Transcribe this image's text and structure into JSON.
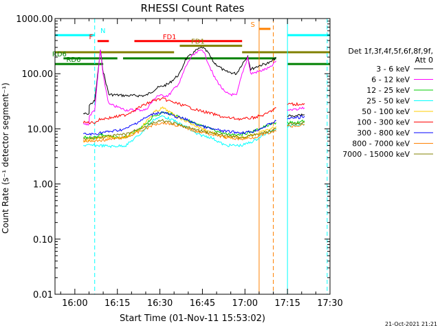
{
  "chart_data": {
    "type": "line",
    "title": "RHESSI Count Rates",
    "xlabel": "Start Time (01-Nov-11 15:53:02)",
    "ylabel": "Count Rate (s⁻¹ detector segment⁻¹)",
    "x_unit": "minutes after 15:53:02",
    "xlim": [
      0,
      97
    ],
    "ylim": [
      0.01,
      1000
    ],
    "y_scale": "log",
    "x_tick_labels": [
      "16:00",
      "16:15",
      "16:30",
      "16:45",
      "17:00",
      "17:15",
      "17:30"
    ],
    "x_ticks": [
      7,
      22,
      37,
      52,
      67,
      82,
      97
    ],
    "y_tick_labels": [
      "0.01",
      "0.10",
      "1.00",
      "10.00",
      "100.00",
      "1000.00"
    ],
    "y_ticks": [
      0.01,
      0.1,
      1,
      10,
      100,
      1000
    ],
    "grid": false,
    "legend_placement": "right",
    "legend_header": [
      "Det 1f,3f,4f,5f,6f,8f,9f,",
      "Att 0"
    ],
    "timestamp": "21-Oct-2021 21:21",
    "series": [
      {
        "name": "3 - 6 keV",
        "color": "#000000",
        "points": [
          [
            10,
            19
          ],
          [
            12,
            18
          ],
          [
            12.1,
            27
          ],
          [
            14,
            32
          ],
          [
            16,
            260
          ],
          [
            17,
            110
          ],
          [
            19,
            42
          ],
          [
            25,
            40
          ],
          [
            32,
            40
          ],
          [
            36,
            55
          ],
          [
            40,
            65
          ],
          [
            44,
            100
          ],
          [
            46,
            180
          ],
          [
            48,
            220
          ],
          [
            50,
            270
          ],
          [
            52,
            300
          ],
          [
            54,
            240
          ],
          [
            56,
            160
          ],
          [
            60,
            110
          ],
          [
            64,
            100
          ],
          [
            66,
            150
          ],
          [
            68,
            210
          ],
          [
            69,
            120
          ],
          [
            72,
            140
          ],
          [
            76,
            160
          ],
          [
            78,
            200
          ]
        ]
      },
      {
        "name": "6 - 12 keV",
        "color": "#ff00ff",
        "points": [
          [
            10,
            12
          ],
          [
            12,
            12
          ],
          [
            12.1,
            17
          ],
          [
            14,
            22
          ],
          [
            16,
            270
          ],
          [
            17,
            90
          ],
          [
            19,
            28
          ],
          [
            25,
            22
          ],
          [
            32,
            22
          ],
          [
            36,
            40
          ],
          [
            40,
            40
          ],
          [
            44,
            70
          ],
          [
            46,
            130
          ],
          [
            48,
            200
          ],
          [
            50,
            240
          ],
          [
            52,
            280
          ],
          [
            54,
            160
          ],
          [
            56,
            90
          ],
          [
            60,
            45
          ],
          [
            64,
            40
          ],
          [
            66,
            100
          ],
          [
            68,
            200
          ],
          [
            69,
            100
          ],
          [
            72,
            110
          ],
          [
            76,
            130
          ],
          [
            78,
            170
          ]
        ]
      },
      {
        "name": "12 - 25 keV",
        "color": "#00cc00",
        "points": [
          [
            10,
            7
          ],
          [
            14,
            7
          ],
          [
            16,
            8
          ],
          [
            20,
            7
          ],
          [
            25,
            7
          ],
          [
            30,
            10
          ],
          [
            35,
            17
          ],
          [
            38,
            20
          ],
          [
            42,
            18
          ],
          [
            46,
            15
          ],
          [
            50,
            12
          ],
          [
            55,
            10
          ],
          [
            60,
            8
          ],
          [
            66,
            8
          ],
          [
            70,
            9
          ],
          [
            74,
            11
          ],
          [
            78,
            13
          ]
        ]
      },
      {
        "name": "25 - 50 keV",
        "color": "#00ffff",
        "points": [
          [
            10,
            5
          ],
          [
            14,
            5
          ],
          [
            16,
            5
          ],
          [
            20,
            4.8
          ],
          [
            25,
            5
          ],
          [
            30,
            8
          ],
          [
            35,
            15
          ],
          [
            38,
            17
          ],
          [
            42,
            14
          ],
          [
            46,
            11
          ],
          [
            50,
            8
          ],
          [
            55,
            7
          ],
          [
            60,
            5
          ],
          [
            66,
            5
          ],
          [
            70,
            6
          ],
          [
            74,
            8
          ],
          [
            78,
            10
          ]
        ]
      },
      {
        "name": "50 - 100 keV",
        "color": "#ffcc00",
        "points": [
          [
            10,
            6
          ],
          [
            16,
            7
          ],
          [
            25,
            7
          ],
          [
            30,
            10
          ],
          [
            35,
            20
          ],
          [
            38,
            24
          ],
          [
            42,
            18
          ],
          [
            50,
            11
          ],
          [
            60,
            7
          ],
          [
            66,
            7
          ],
          [
            74,
            9
          ],
          [
            78,
            11
          ]
        ]
      },
      {
        "name": "100 - 300 keV",
        "color": "#ff0000",
        "points": [
          [
            10,
            13
          ],
          [
            14,
            13
          ],
          [
            16,
            15
          ],
          [
            20,
            16
          ],
          [
            25,
            18
          ],
          [
            30,
            25
          ],
          [
            35,
            33
          ],
          [
            38,
            35
          ],
          [
            42,
            30
          ],
          [
            46,
            26
          ],
          [
            50,
            22
          ],
          [
            55,
            19
          ],
          [
            60,
            16
          ],
          [
            66,
            15
          ],
          [
            70,
            16
          ],
          [
            74,
            18
          ],
          [
            78,
            24
          ]
        ]
      },
      {
        "name": "300 - 800 keV",
        "color": "#0000ff",
        "points": [
          [
            10,
            8
          ],
          [
            14,
            8
          ],
          [
            16,
            8.5
          ],
          [
            20,
            9
          ],
          [
            25,
            10
          ],
          [
            30,
            14
          ],
          [
            35,
            19
          ],
          [
            38,
            20
          ],
          [
            42,
            17
          ],
          [
            46,
            15
          ],
          [
            50,
            12
          ],
          [
            55,
            10
          ],
          [
            60,
            9
          ],
          [
            66,
            8.5
          ],
          [
            70,
            9
          ],
          [
            74,
            11
          ],
          [
            78,
            14
          ]
        ]
      },
      {
        "name": "800 - 7000 keV",
        "color": "#ff8000",
        "points": [
          [
            10,
            6
          ],
          [
            14,
            6
          ],
          [
            16,
            6.2
          ],
          [
            20,
            6.5
          ],
          [
            25,
            7
          ],
          [
            30,
            9
          ],
          [
            35,
            12
          ],
          [
            38,
            13
          ],
          [
            42,
            12
          ],
          [
            46,
            10.5
          ],
          [
            50,
            9
          ],
          [
            55,
            8
          ],
          [
            60,
            7
          ],
          [
            66,
            6.5
          ],
          [
            70,
            7
          ],
          [
            74,
            8
          ],
          [
            78,
            9
          ]
        ]
      },
      {
        "name": "7000 - 15000 keV",
        "color": "#808000",
        "points": [
          [
            10,
            6.5
          ],
          [
            16,
            7
          ],
          [
            25,
            8
          ],
          [
            35,
            13
          ],
          [
            38,
            14
          ],
          [
            42,
            12.5
          ],
          [
            50,
            9.5
          ],
          [
            60,
            7.5
          ],
          [
            66,
            7
          ],
          [
            74,
            8.5
          ],
          [
            78,
            10
          ]
        ]
      }
    ],
    "right_segments": [
      {
        "color": "#000000",
        "points": [
          [
            82,
            17
          ],
          [
            86,
            18
          ],
          [
            88,
            18
          ]
        ]
      },
      {
        "color": "#ff00ff",
        "points": [
          [
            82,
            22
          ],
          [
            86,
            23
          ],
          [
            88,
            24
          ]
        ]
      },
      {
        "color": "#ff0000",
        "points": [
          [
            82,
            28
          ],
          [
            86,
            28
          ],
          [
            88,
            29
          ]
        ]
      },
      {
        "color": "#0000ff",
        "points": [
          [
            82,
            15
          ],
          [
            86,
            16
          ],
          [
            88,
            17
          ]
        ]
      },
      {
        "color": "#00cc00",
        "points": [
          [
            82,
            13
          ],
          [
            86,
            13
          ],
          [
            88,
            14
          ]
        ]
      },
      {
        "color": "#00ffff",
        "points": [
          [
            82,
            11
          ],
          [
            86,
            12
          ],
          [
            88,
            12
          ]
        ]
      },
      {
        "color": "#ff8000",
        "points": [
          [
            82,
            11
          ],
          [
            86,
            11.5
          ],
          [
            88,
            12
          ]
        ]
      },
      {
        "color": "#808000",
        "points": [
          [
            82,
            12
          ],
          [
            86,
            12.5
          ],
          [
            88,
            13
          ]
        ]
      }
    ],
    "flag_bars": [
      {
        "label": "N",
        "color": "#00ffff",
        "x0": 0,
        "x1": 14,
        "y": 500,
        "label_x": 16
      },
      {
        "label": "N",
        "color": "#00ffff",
        "x0": 82,
        "x1": 97,
        "y": 500,
        "label_x": null
      },
      {
        "label": "F",
        "color": "#ff0000",
        "x0": 15,
        "x1": 19,
        "y": 390,
        "label_x": 12
      },
      {
        "label": "FD1",
        "color": "#ff0000",
        "x0": 28,
        "x1": 66,
        "y": 390,
        "label_x": 38
      },
      {
        "label": "S",
        "color": "#ff8000",
        "x0": 72,
        "x1": 76,
        "y": 650,
        "label_x": 69
      },
      {
        "label": "FD1",
        "color": "#808000",
        "x0": 44,
        "x1": 66,
        "y": 320,
        "label_x": 48
      },
      {
        "label": "RD6",
        "color": "#808000",
        "x0": 0,
        "x1": 42,
        "y": 245,
        "label_x": null
      },
      {
        "label": "RD6",
        "color": "#808000",
        "x0": 66,
        "x1": 97,
        "y": 245,
        "label_x": null
      },
      {
        "label": "RD6",
        "color": "#008000",
        "x0": 3,
        "x1": 22,
        "y": 190,
        "label_x": -1
      },
      {
        "label": "RD6",
        "color": "#008000",
        "x0": 0,
        "x1": 17,
        "y": 150,
        "label_x": 4
      },
      {
        "label": "RD6",
        "color": "#008000",
        "x0": 24,
        "x1": 78,
        "y": 190,
        "label_x": null
      },
      {
        "label": "RD6",
        "color": "#008000",
        "x0": 82,
        "x1": 97,
        "y": 150,
        "label_x": null
      }
    ],
    "vertical_lines": [
      {
        "x": 14,
        "color": "#00ffff",
        "style": "dashed"
      },
      {
        "x": 0,
        "color": "#00ffff",
        "style": "solid"
      },
      {
        "x": 82,
        "color": "#00ffff",
        "style": "solid"
      },
      {
        "x": 96,
        "color": "#00ffff",
        "style": "dashed"
      },
      {
        "x": 72,
        "color": "#ff8000",
        "style": "solid"
      },
      {
        "x": 77,
        "color": "#ff8000",
        "style": "dashed"
      }
    ]
  }
}
